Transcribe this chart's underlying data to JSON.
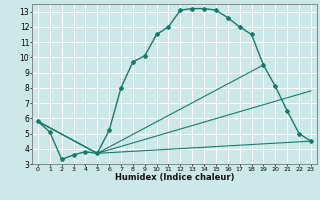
{
  "xlabel": "Humidex (Indice chaleur)",
  "bg_color": "#cce8e8",
  "grid_color": "#ffffff",
  "line_color": "#1a7a6a",
  "xlim": [
    -0.5,
    23.5
  ],
  "ylim": [
    3,
    13.5
  ],
  "yticks": [
    3,
    4,
    5,
    6,
    7,
    8,
    9,
    10,
    11,
    12,
    13
  ],
  "xticks": [
    0,
    1,
    2,
    3,
    4,
    5,
    6,
    7,
    8,
    9,
    10,
    11,
    12,
    13,
    14,
    15,
    16,
    17,
    18,
    19,
    20,
    21,
    22,
    23
  ],
  "line1_x": [
    0,
    1,
    2,
    3,
    4,
    5,
    6,
    7,
    8,
    9,
    10,
    11,
    12,
    13,
    14,
    15,
    16,
    17,
    18,
    19,
    20,
    21,
    22,
    23
  ],
  "line1_y": [
    5.8,
    5.1,
    3.3,
    3.6,
    3.8,
    3.7,
    5.2,
    8.0,
    9.7,
    10.1,
    11.5,
    12.0,
    13.1,
    13.2,
    13.2,
    13.1,
    12.6,
    12.0,
    11.5,
    9.5,
    8.1,
    6.5,
    5.0,
    4.5
  ],
  "line2_x": [
    0,
    5,
    23
  ],
  "line2_y": [
    5.8,
    3.7,
    4.5
  ],
  "line3_x": [
    0,
    5,
    23
  ],
  "line3_y": [
    5.8,
    3.7,
    7.8
  ],
  "line4_x": [
    0,
    5,
    19
  ],
  "line4_y": [
    5.8,
    3.7,
    9.5
  ]
}
